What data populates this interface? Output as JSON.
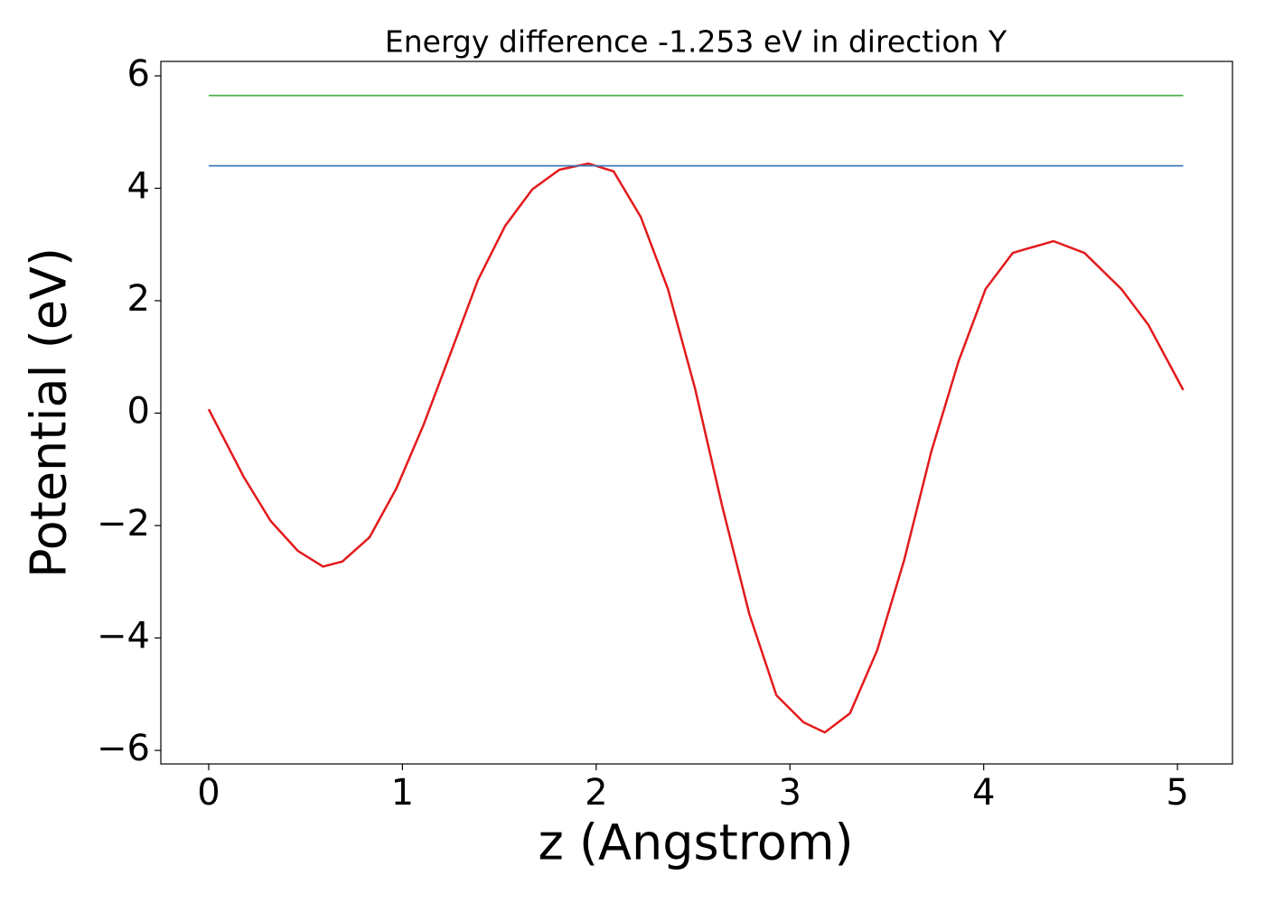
{
  "chart_data": {
    "type": "line",
    "title": "Energy difference -1.253 eV in direction Y",
    "xlabel": "z (Angstrom)",
    "ylabel": "Potential (eV)",
    "series": [
      {
        "color": "#e31a1c",
        "x": [
          0,
          0.18,
          0.32,
          0.46,
          0.59,
          0.69,
          0.83,
          0.97,
          1.11,
          1.25,
          1.39,
          1.53,
          1.67,
          1.81,
          1.96,
          2.09,
          2.23,
          2.37,
          2.51,
          2.65,
          2.79,
          2.93,
          3.07,
          3.18,
          3.31,
          3.45,
          3.59,
          3.73,
          3.87,
          4.01,
          4.15,
          4.36,
          4.52,
          4.71,
          4.85,
          5.03
        ],
        "values": [
          0.07,
          -1.13,
          -1.92,
          -2.45,
          -2.73,
          -2.64,
          -2.21,
          -1.33,
          -0.2,
          1.08,
          2.37,
          3.33,
          3.98,
          4.33,
          4.44,
          4.3,
          3.49,
          2.21,
          0.44,
          -1.65,
          -3.57,
          -5.02,
          -5.5,
          -5.68,
          -5.34,
          -4.22,
          -2.61,
          -0.68,
          0.92,
          2.21,
          2.85,
          3.06,
          2.85,
          2.21,
          1.57,
          0.41
        ]
      },
      {
        "color": "#3a7bb8",
        "x": [
          0,
          5.03
        ],
        "values": [
          4.4,
          4.4
        ]
      },
      {
        "color": "#4daf4a",
        "x": [
          0,
          5.03
        ],
        "values": [
          5.65,
          5.65
        ]
      }
    ],
    "xlim": [
      -0.247,
      5.284
    ],
    "xticks": [
      0,
      1,
      2,
      3,
      4,
      5
    ],
    "ylim": [
      -6.241,
      6.257
    ],
    "yticks": [
      {
        "value": -6,
        "label": "−6"
      },
      {
        "value": -4,
        "label": "−4"
      },
      {
        "value": -2,
        "label": "−2"
      },
      0,
      2,
      4,
      6
    ],
    "grid": false
  }
}
